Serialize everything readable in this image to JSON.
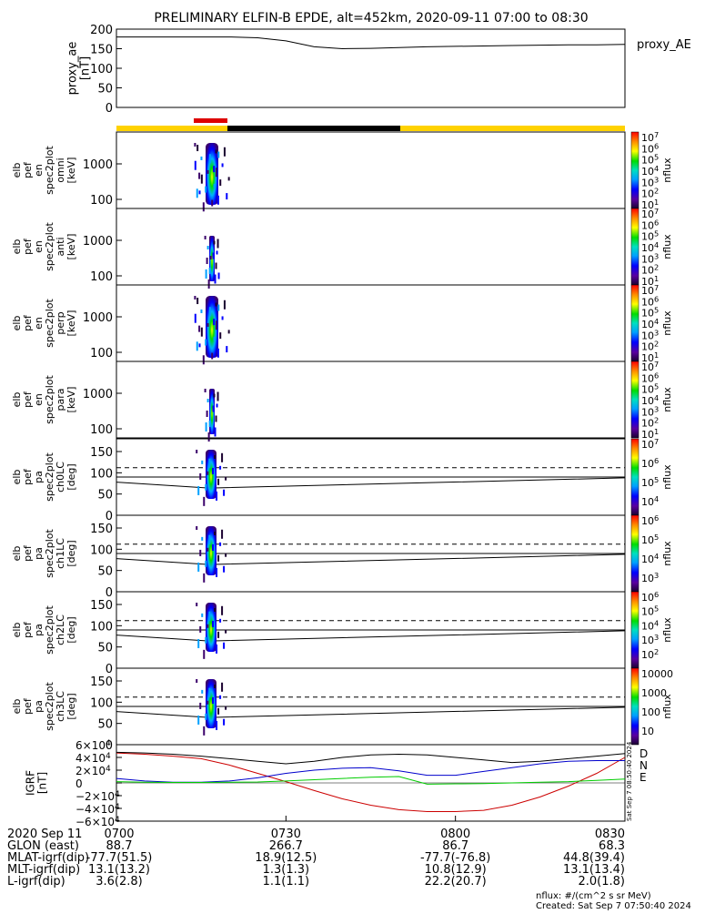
{
  "title": "PRELIMINARY ELFIN-B EPDE, alt=452km, 2020-09-11 07:00 to 08:30",
  "proxy_ae": {
    "ylabel_lines": [
      "proxy_ae",
      "[nT]"
    ],
    "yticks": [
      "200",
      "150",
      "100",
      "50",
      "0"
    ],
    "legend": "proxy_AE"
  },
  "spec_panels": [
    {
      "ylabel_lines": [
        "elb",
        "pef",
        "en",
        "spec2plot",
        "omni",
        "[keV]"
      ],
      "yticks": [
        "1000",
        "100"
      ]
    },
    {
      "ylabel_lines": [
        "elb",
        "pef",
        "en",
        "spec2plot",
        "anti",
        "[keV]"
      ],
      "yticks": [
        "1000",
        "100"
      ]
    },
    {
      "ylabel_lines": [
        "elb",
        "pef",
        "en",
        "spec2plot",
        "perp",
        "[keV]"
      ],
      "yticks": [
        "1000",
        "100"
      ]
    },
    {
      "ylabel_lines": [
        "elb",
        "pef",
        "en",
        "spec2plot",
        "para",
        "[keV]"
      ],
      "yticks": [
        "1000",
        "100"
      ]
    }
  ],
  "pa_panels": [
    {
      "ylabel_lines": [
        "elb",
        "pef",
        "pa",
        "spec2plot",
        "ch0LC",
        "[deg]"
      ],
      "yticks": [
        "150",
        "100",
        "50",
        "0"
      ]
    },
    {
      "ylabel_lines": [
        "elb",
        "pef",
        "pa",
        "spec2plot",
        "ch1LC",
        "[deg]"
      ],
      "yticks": [
        "150",
        "100",
        "50",
        "0"
      ]
    },
    {
      "ylabel_lines": [
        "elb",
        "pef",
        "pa",
        "spec2plot",
        "ch2LC",
        "[deg]"
      ],
      "yticks": [
        "150",
        "100",
        "50",
        "0"
      ]
    },
    {
      "ylabel_lines": [
        "elb",
        "pef",
        "pa",
        "spec2plot",
        "ch3LC",
        "[deg]"
      ],
      "yticks": [
        "150",
        "100",
        "50",
        "0"
      ]
    }
  ],
  "colorbars": [
    {
      "label": "nflux",
      "ticks": [
        "10^7",
        "10^6",
        "10^5",
        "10^4",
        "10^3",
        "10^2",
        "10^1"
      ]
    },
    {
      "label": "nflux",
      "ticks": [
        "10^7",
        "10^6",
        "10^5",
        "10^4",
        "10^3",
        "10^2",
        "10^1"
      ]
    },
    {
      "label": "nflux",
      "ticks": [
        "10^7",
        "10^6",
        "10^5",
        "10^4",
        "10^3",
        "10^2",
        "10^1"
      ]
    },
    {
      "label": "nflux",
      "ticks": [
        "10^7",
        "10^6",
        "10^5",
        "10^4",
        "10^3",
        "10^2",
        "10^1"
      ]
    },
    {
      "label": "nflux",
      "ticks": [
        "10^7",
        "10^6",
        "10^5",
        "10^4"
      ]
    },
    {
      "label": "nflux",
      "ticks": [
        "10^6",
        "10^5",
        "10^4",
        "10^3"
      ]
    },
    {
      "label": "nflux",
      "ticks": [
        "10^6",
        "10^5",
        "10^4",
        "10^3",
        "10^2"
      ]
    },
    {
      "label": "nflux",
      "ticks": [
        "10000",
        "1000",
        "100",
        "10"
      ]
    }
  ],
  "igrf": {
    "ylabel_lines": [
      "IGRF",
      "[nT]"
    ],
    "yticks": [
      "6×10^4",
      "4×10^4",
      "2×10^4",
      "0",
      "−2×10^4",
      "−4×10^4",
      "−6×10^4"
    ],
    "legend": [
      {
        "label": "D",
        "color": "#cc0000"
      },
      {
        "label": "N",
        "color": "#0000cc"
      },
      {
        "label": "E",
        "color": "#00cc00"
      }
    ],
    "stamp": "Sat Sep  7 08:50:40 2024"
  },
  "chart_data": [
    {
      "type": "line",
      "title": "PRELIMINARY ELFIN-B EPDE, alt=452km, 2020-09-11 07:00 to 08:30",
      "ylabel": "proxy_ae [nT]",
      "x_minutes": [
        0,
        5,
        10,
        15,
        20,
        25,
        30,
        35,
        40,
        45,
        50,
        55,
        60,
        65,
        70,
        75,
        80,
        85,
        90
      ],
      "series": [
        {
          "name": "proxy_AE",
          "values": [
            180,
            180,
            180,
            180,
            180,
            178,
            170,
            155,
            150,
            151,
            153,
            155,
            156,
            157,
            158,
            159,
            160,
            160,
            161
          ]
        }
      ],
      "ylim": [
        0,
        200
      ],
      "xlim": [
        "07:00",
        "08:30"
      ]
    },
    {
      "type": "line",
      "ylabel": "IGRF [nT]",
      "x_minutes": [
        0,
        5,
        10,
        15,
        20,
        25,
        30,
        35,
        40,
        45,
        50,
        55,
        60,
        65,
        70,
        75,
        80,
        85,
        90
      ],
      "series": [
        {
          "name": "D",
          "values": [
            47000,
            45000,
            42000,
            38000,
            28000,
            15000,
            2000,
            -12000,
            -25000,
            -35000,
            -42000,
            -45000,
            -45000,
            -43000,
            -35000,
            -22000,
            -5000,
            15000,
            40000
          ]
        },
        {
          "name": "N",
          "values": [
            7000,
            3000,
            1000,
            1000,
            3000,
            8000,
            15000,
            20000,
            23000,
            24000,
            19000,
            12000,
            12000,
            18000,
            24000,
            30000,
            34000,
            35000,
            35000
          ]
        },
        {
          "name": "E",
          "values": [
            2000,
            1000,
            800,
            800,
            1000,
            1500,
            3000,
            5000,
            7000,
            9000,
            10000,
            -2000,
            -1500,
            -1000,
            0,
            1000,
            2000,
            4000,
            6000
          ]
        },
        {
          "name": "total",
          "values": [
            48000,
            47000,
            45000,
            42000,
            38000,
            34000,
            30000,
            34000,
            40000,
            44000,
            45000,
            44000,
            40000,
            36000,
            32000,
            34000,
            38000,
            42000,
            46000
          ]
        }
      ],
      "ylim": [
        -60000,
        60000
      ],
      "xlim": [
        "07:00",
        "08:30"
      ]
    }
  ],
  "ephemeris": {
    "row_labels": [
      "2020 Sep 11",
      "GLON (east)",
      "MLAT-igrf(dip)",
      "MLT-igrf(dip)",
      "L-igrf(dip)"
    ],
    "columns": [
      {
        "time": "0700",
        "values": [
          "88.7",
          "-77.7(51.5)",
          "13.1(13.2)",
          "3.6(2.8)"
        ]
      },
      {
        "time": "0730",
        "values": [
          "266.7",
          "18.9(12.5)",
          "1.3(1.3)",
          "1.1(1.1)"
        ]
      },
      {
        "time": "0800",
        "values": [
          "86.7",
          "-77.7(-76.8)",
          "10.8(12.9)",
          "22.2(20.7)"
        ]
      },
      {
        "time": "0830",
        "values": [
          "68.3",
          "44.8(39.4)",
          "13.1(13.4)",
          "2.0(1.8)"
        ]
      }
    ]
  },
  "footer": {
    "units": "nflux: #/(cm^2 s sr MeV)",
    "created": "Created: Sat Sep  7 07:50:40 2024"
  }
}
